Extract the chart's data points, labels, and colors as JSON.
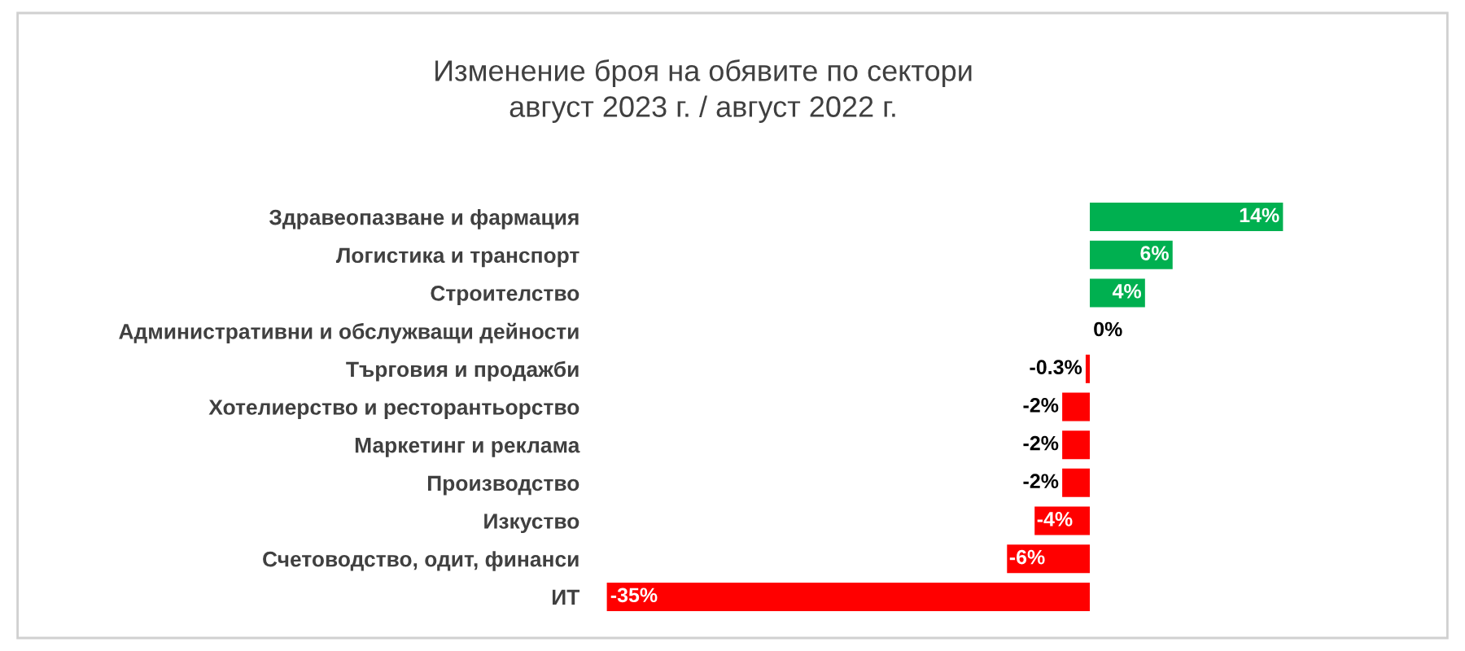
{
  "chart_data": {
    "type": "bar",
    "orientation": "horizontal",
    "title": "Изменение броя на обявите по сектори\nавгуст 2023 г. / август 2022 г.",
    "categories": [
      "Здравеопазване и фармация",
      "Логистика и транспорт",
      "Строителство",
      "Административни и обслужващи дейности",
      "Търговия и продажби",
      "Хотелиерство и ресторантьорство",
      "Маркетинг и реклама",
      "Производство",
      "Изкуство",
      "Счетоводство, одит, финанси",
      "ИТ"
    ],
    "values": [
      14,
      6,
      4,
      0,
      -0.3,
      -2,
      -2,
      -2,
      -4,
      -6,
      -35
    ],
    "colors": [
      "#00b050",
      "#00b050",
      "#00b050",
      "#00b050",
      "#ff0000",
      "#ff0000",
      "#ff0000",
      "#ff0000",
      "#ff0000",
      "#ff0000",
      "#ff0000"
    ],
    "value_labels": [
      "14%",
      "6%",
      "4%",
      "0%",
      "-0.3%",
      "-2%",
      "-2%",
      "-2%",
      "-4%",
      "-6%",
      "-35%"
    ],
    "grid": false,
    "legend": false
  }
}
